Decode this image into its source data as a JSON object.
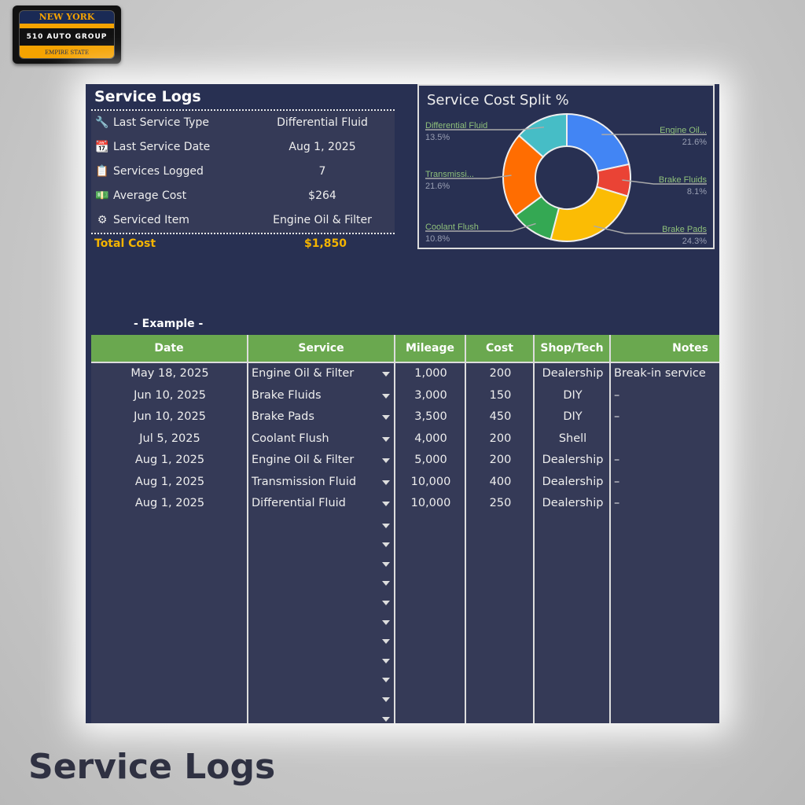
{
  "logo": {
    "line1": "NEW YORK",
    "line2": "510 AUTO GROUP",
    "line3": "EMPIRE STATE"
  },
  "title": "Service Logs",
  "summary": [
    {
      "icon": "wrench-icon",
      "glyph": "🔧",
      "label": "Last Service Type",
      "value": "Differential Fluid"
    },
    {
      "icon": "calendar-icon",
      "glyph": "📆",
      "label": "Last Service Date",
      "value": "Aug 1, 2025"
    },
    {
      "icon": "clipboard-icon",
      "glyph": "📋",
      "label": "Services Logged",
      "value": "7"
    },
    {
      "icon": "money-icon",
      "glyph": "💵",
      "label": "Average Cost",
      "value": "$264"
    },
    {
      "icon": "tire-icon",
      "glyph": "⚙",
      "label": "Serviced Item",
      "value": "Engine Oil & Filter"
    }
  ],
  "total": {
    "label": "Total Cost",
    "value": "$1,850"
  },
  "chart_data": {
    "type": "pie",
    "donut": true,
    "title": "Service Cost Split %",
    "categories": [
      "Engine Oil...",
      "Brake Fluids",
      "Brake Pads",
      "Coolant Flush",
      "Transmissi...",
      "Differential Fluid"
    ],
    "values": [
      21.6,
      8.1,
      24.3,
      10.8,
      21.6,
      13.5
    ],
    "labels": [
      "21.6%",
      "8.1%",
      "24.3%",
      "10.8%",
      "21.6%",
      "13.5%"
    ],
    "colors": [
      "#4285f4",
      "#ea4335",
      "#fbbc04",
      "#34a853",
      "#ff6d01",
      "#46bdc6"
    ]
  },
  "example_label": "- Example -",
  "table": {
    "headers": [
      "Date",
      "Service",
      "Mileage",
      "Cost",
      "Shop/Tech",
      "Notes"
    ],
    "rows": [
      [
        "May 18, 2025",
        "Engine Oil & Filter",
        "1,000",
        "200",
        "Dealership",
        "Break-in service"
      ],
      [
        "Jun 10, 2025",
        "Brake Fluids",
        "3,000",
        "150",
        "DIY",
        "–"
      ],
      [
        "Jun 10, 2025",
        "Brake Pads",
        "3,500",
        "450",
        "DIY",
        "–"
      ],
      [
        "Jul 5, 2025",
        "Coolant Flush",
        "4,000",
        "200",
        "Shell",
        ""
      ],
      [
        "Aug 1, 2025",
        "Engine Oil & Filter",
        "5,000",
        "200",
        "Dealership",
        "–"
      ],
      [
        "Aug 1, 2025",
        "Transmission Fluid",
        "10,000",
        "400",
        "Dealership",
        "–"
      ],
      [
        "Aug 1, 2025",
        "Differential Fluid",
        "10,000",
        "250",
        "Dealership",
        "–"
      ]
    ]
  },
  "caption": "Service Logs"
}
